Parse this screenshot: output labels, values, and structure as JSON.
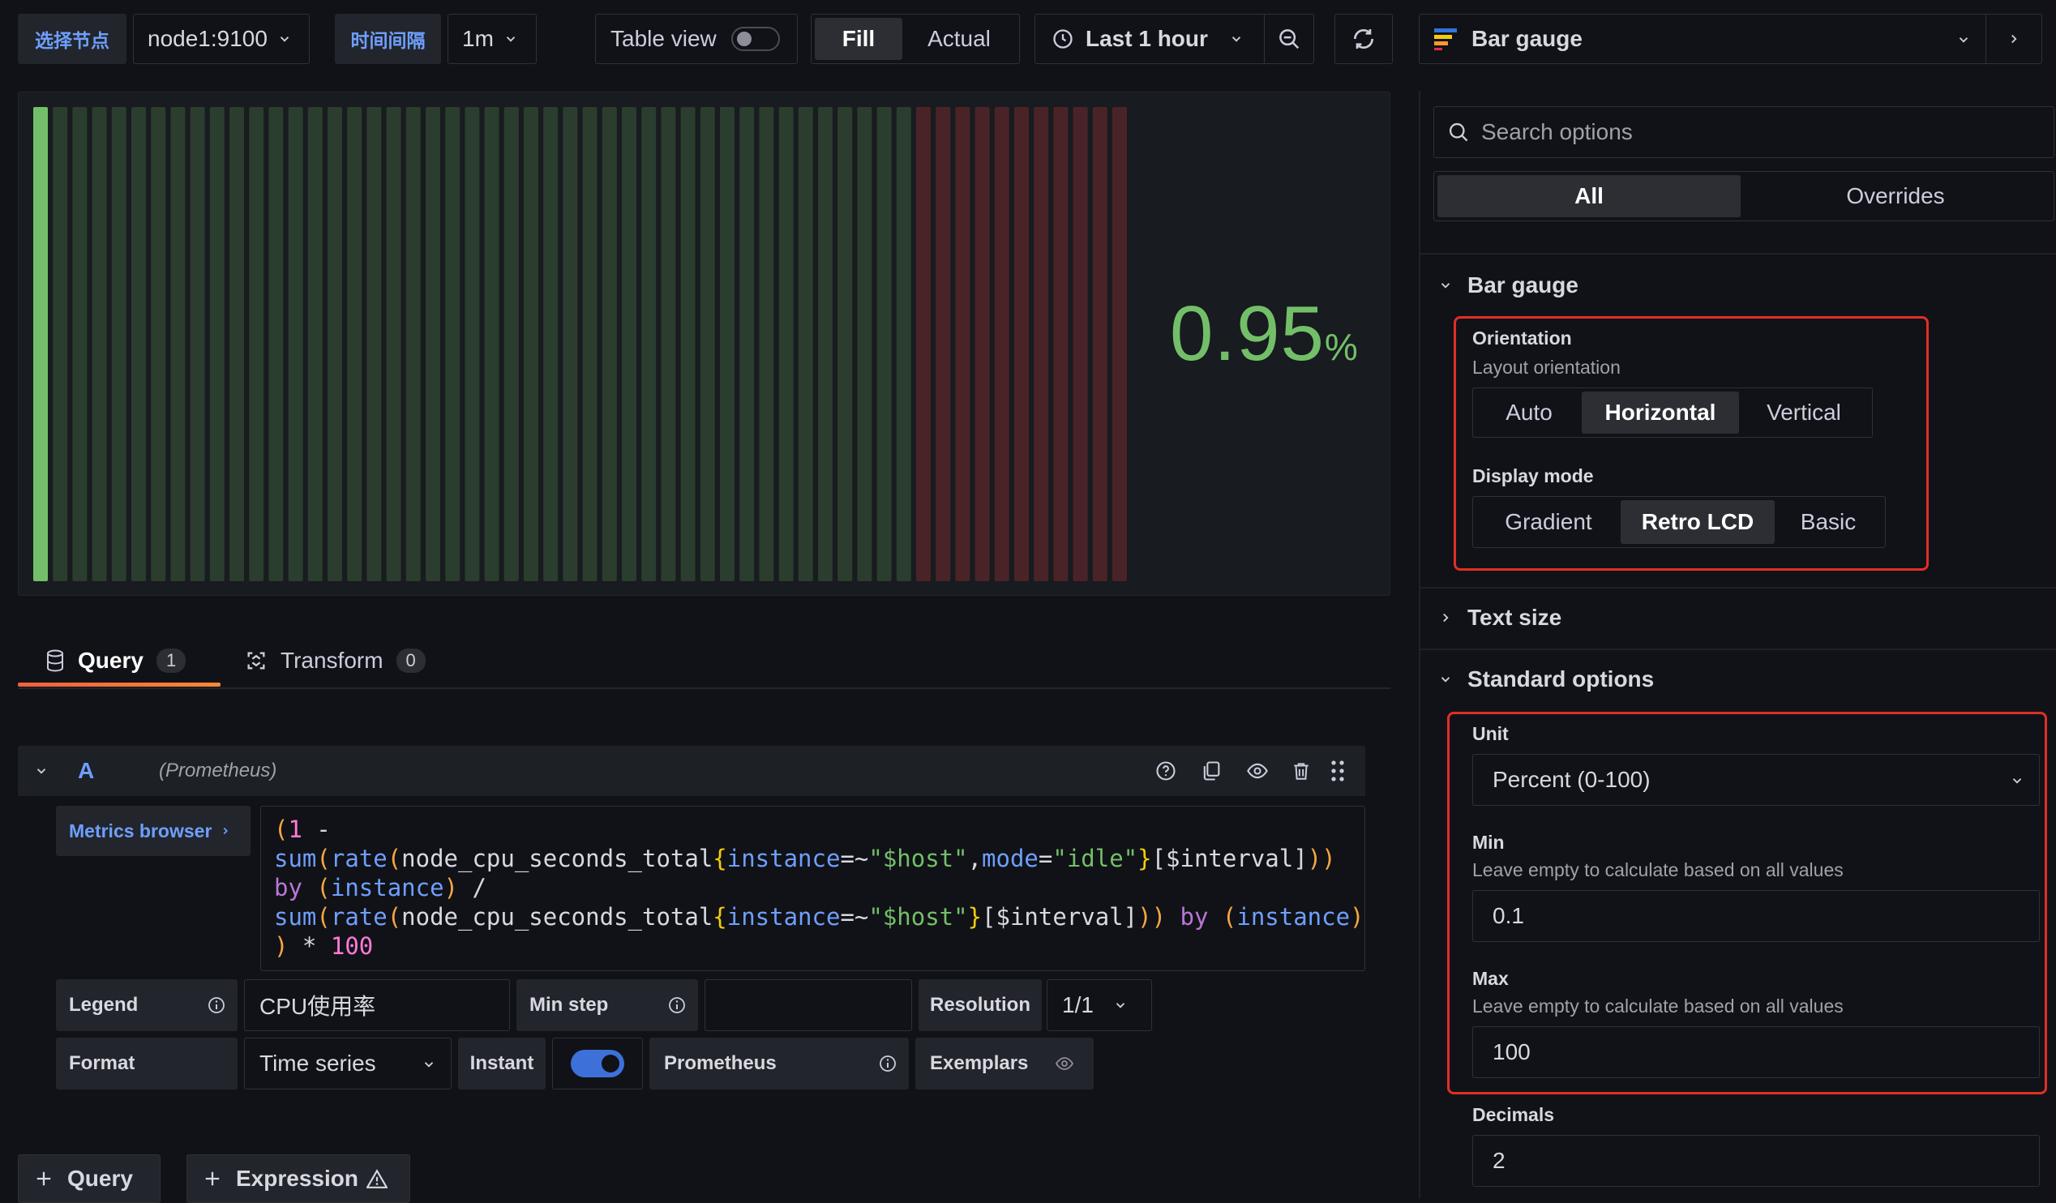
{
  "toolbar": {
    "var1_label": "选择节点",
    "var1_value": "node1:9100",
    "var2_label": "时间间隔",
    "var2_value": "1m",
    "table_view_label": "Table view",
    "table_view_on": false,
    "fill_label": "Fill",
    "actual_label": "Actual",
    "time_range": "Last 1 hour"
  },
  "viz_picker": {
    "label": "Bar gauge"
  },
  "panel": {
    "value": "0.95",
    "unit": "%",
    "gauge_fraction": 0.0085,
    "colors": {
      "green": "#73bf69",
      "green_dim": "#2a3d2e",
      "red_dim": "#4a2328",
      "value_color": "#73bf69"
    }
  },
  "query_tabs": {
    "query_label": "Query",
    "query_count": "1",
    "transform_label": "Transform",
    "transform_count": "0"
  },
  "query_row": {
    "ref_id": "A",
    "datasource": "(Prometheus)",
    "metrics_browser_label": "Metrics browser",
    "legend_label": "Legend",
    "legend_value": "CPU使用率",
    "min_step_label": "Min step",
    "min_step_value": "",
    "resolution_label": "Resolution",
    "resolution_value": "1/1",
    "format_label": "Format",
    "format_value": "Time series",
    "instant_label": "Instant",
    "instant_on": true,
    "prometheus_label": "Prometheus",
    "exemplars_label": "Exemplars"
  },
  "query_code": [
    [
      [
        "(",
        "p"
      ],
      [
        "1",
        "n"
      ],
      [
        " -",
        "w"
      ]
    ],
    [
      [
        "sum",
        "f"
      ],
      [
        "(",
        "p"
      ],
      [
        "rate",
        "f"
      ],
      [
        "(",
        "p"
      ],
      [
        "node_cpu_seconds_total",
        "w"
      ],
      [
        "{",
        "y"
      ],
      [
        "instance",
        "f"
      ],
      [
        "=~",
        "w"
      ],
      [
        "\"$host\"",
        "s"
      ],
      [
        ",",
        "w"
      ],
      [
        "mode",
        "f"
      ],
      [
        "=",
        "w"
      ],
      [
        "\"idle\"",
        "s"
      ],
      [
        "}",
        "y"
      ],
      [
        "[$interval]",
        "w"
      ],
      [
        "))",
        "p"
      ]
    ],
    [
      [
        "by",
        "k"
      ],
      [
        " ",
        "w"
      ],
      [
        "(",
        "p"
      ],
      [
        "instance",
        "f"
      ],
      [
        ")",
        "p"
      ],
      [
        " /",
        "w"
      ]
    ],
    [
      [
        "sum",
        "f"
      ],
      [
        "(",
        "p"
      ],
      [
        "rate",
        "f"
      ],
      [
        "(",
        "p"
      ],
      [
        "node_cpu_seconds_total",
        "w"
      ],
      [
        "{",
        "y"
      ],
      [
        "instance",
        "f"
      ],
      [
        "=~",
        "w"
      ],
      [
        "\"$host\"",
        "s"
      ],
      [
        "}",
        "y"
      ],
      [
        "[$interval]",
        "w"
      ],
      [
        "))",
        "p"
      ],
      [
        " ",
        "w"
      ],
      [
        "by",
        "k"
      ],
      [
        " ",
        "w"
      ],
      [
        "(",
        "p"
      ],
      [
        "instance",
        "f"
      ],
      [
        ")",
        "p"
      ]
    ],
    [
      [
        ")",
        "p"
      ],
      [
        " * ",
        "w"
      ],
      [
        "100",
        "n"
      ]
    ]
  ],
  "bottom_buttons": {
    "add_query_label": "Query",
    "add_expression_label": "Expression"
  },
  "options": {
    "search_placeholder": "Search options",
    "tab_all": "All",
    "tab_overrides": "Overrides",
    "bar_gauge_section": "Bar gauge",
    "orientation_title": "Orientation",
    "orientation_desc": "Layout orientation",
    "orientation_options": [
      "Auto",
      "Horizontal",
      "Vertical"
    ],
    "orientation_selected": "Horizontal",
    "display_mode_title": "Display mode",
    "display_mode_options": [
      "Gradient",
      "Retro LCD",
      "Basic"
    ],
    "display_mode_selected": "Retro LCD",
    "text_size_section": "Text size",
    "standard_options_section": "Standard options",
    "unit_title": "Unit",
    "unit_value": "Percent (0-100)",
    "min_title": "Min",
    "min_desc": "Leave empty to calculate based on all values",
    "min_value": "0.1",
    "max_title": "Max",
    "max_desc": "Leave empty to calculate based on all values",
    "max_value": "100",
    "decimals_title": "Decimals",
    "decimals_value": "2"
  }
}
